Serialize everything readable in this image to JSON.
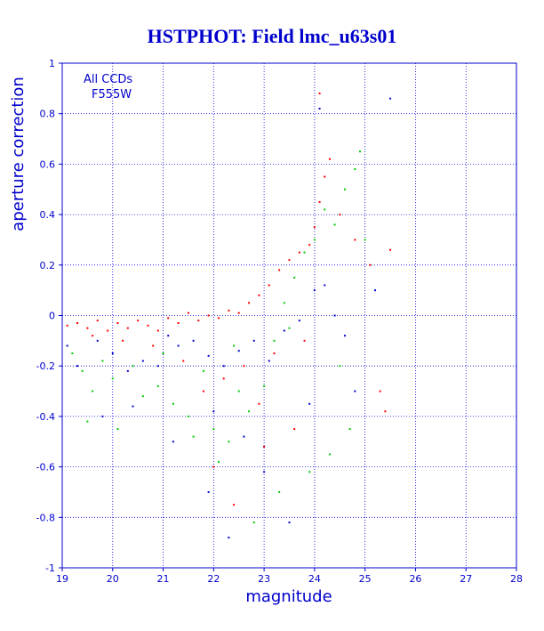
{
  "chart_data": {
    "type": "scatter",
    "title": "HSTPHOT: Field lmc_u63s01",
    "xlabel": "magnitude",
    "ylabel": "aperture correction",
    "xlim": [
      19,
      28
    ],
    "ylim": [
      -1,
      1
    ],
    "x_ticks": [
      "19",
      "20",
      "21",
      "22",
      "23",
      "24",
      "25",
      "26",
      "27",
      "28"
    ],
    "y_ticks": [
      "1",
      "0.8",
      "0.6",
      "0.4",
      "0.2",
      "0",
      "-0.2",
      "-0.4",
      "-0.6",
      "-0.8",
      "-1"
    ],
    "annotations": [
      "All CCDs",
      "F555W"
    ],
    "grid": true,
    "series": [
      {
        "color": "#ff0000",
        "points": [
          [
            19.1,
            -0.04
          ],
          [
            19.3,
            -0.03
          ],
          [
            19.5,
            -0.05
          ],
          [
            19.7,
            -0.02
          ],
          [
            19.9,
            -0.06
          ],
          [
            20.1,
            -0.03
          ],
          [
            20.3,
            -0.05
          ],
          [
            20.5,
            -0.02
          ],
          [
            20.7,
            -0.04
          ],
          [
            20.9,
            -0.06
          ],
          [
            21.1,
            -0.01
          ],
          [
            21.3,
            -0.03
          ],
          [
            21.5,
            0.01
          ],
          [
            21.7,
            -0.02
          ],
          [
            21.9,
            0.0
          ],
          [
            22.1,
            -0.01
          ],
          [
            22.3,
            0.02
          ],
          [
            22.5,
            0.01
          ],
          [
            22.7,
            0.05
          ],
          [
            22.9,
            0.08
          ],
          [
            23.1,
            0.12
          ],
          [
            23.3,
            0.18
          ],
          [
            23.5,
            0.22
          ],
          [
            23.7,
            0.25
          ],
          [
            23.9,
            0.28
          ],
          [
            24.0,
            0.35
          ],
          [
            24.1,
            0.45
          ],
          [
            24.2,
            0.55
          ],
          [
            24.1,
            0.88
          ],
          [
            24.3,
            0.62
          ],
          [
            24.5,
            0.4
          ],
          [
            24.8,
            0.3
          ],
          [
            25.1,
            0.2
          ],
          [
            25.3,
            -0.3
          ],
          [
            25.4,
            -0.38
          ],
          [
            25.5,
            0.26
          ],
          [
            22.0,
            -0.6
          ],
          [
            22.4,
            -0.75
          ],
          [
            23.0,
            -0.52
          ],
          [
            23.6,
            -0.45
          ],
          [
            21.8,
            -0.3
          ],
          [
            22.2,
            -0.25
          ],
          [
            22.6,
            -0.2
          ],
          [
            23.2,
            -0.15
          ],
          [
            23.8,
            -0.1
          ],
          [
            21.4,
            -0.18
          ],
          [
            20.8,
            -0.12
          ],
          [
            20.2,
            -0.1
          ],
          [
            19.6,
            -0.08
          ],
          [
            22.9,
            -0.35
          ]
        ]
      },
      {
        "color": "#00cc00",
        "points": [
          [
            19.2,
            -0.15
          ],
          [
            19.4,
            -0.22
          ],
          [
            19.6,
            -0.3
          ],
          [
            19.8,
            -0.18
          ],
          [
            20.0,
            -0.25
          ],
          [
            20.4,
            -0.2
          ],
          [
            20.6,
            -0.32
          ],
          [
            20.9,
            -0.28
          ],
          [
            21.2,
            -0.35
          ],
          [
            21.5,
            -0.4
          ],
          [
            21.8,
            -0.22
          ],
          [
            22.0,
            -0.45
          ],
          [
            22.3,
            -0.5
          ],
          [
            22.5,
            -0.3
          ],
          [
            22.7,
            -0.38
          ],
          [
            23.0,
            -0.28
          ],
          [
            23.2,
            -0.1
          ],
          [
            23.4,
            0.05
          ],
          [
            23.6,
            0.15
          ],
          [
            23.8,
            0.25
          ],
          [
            24.0,
            0.3
          ],
          [
            24.2,
            0.42
          ],
          [
            24.4,
            0.36
          ],
          [
            24.6,
            0.5
          ],
          [
            24.8,
            0.58
          ],
          [
            24.9,
            0.65
          ],
          [
            25.0,
            0.3
          ],
          [
            24.5,
            -0.2
          ],
          [
            24.7,
            -0.45
          ],
          [
            24.3,
            -0.55
          ],
          [
            23.9,
            -0.62
          ],
          [
            23.3,
            -0.7
          ],
          [
            22.8,
            -0.82
          ],
          [
            22.1,
            -0.58
          ],
          [
            21.6,
            -0.48
          ],
          [
            20.1,
            -0.45
          ],
          [
            19.5,
            -0.42
          ],
          [
            21.0,
            -0.15
          ],
          [
            22.4,
            -0.12
          ],
          [
            23.5,
            -0.05
          ]
        ]
      },
      {
        "color": "#0000cc",
        "points": [
          [
            19.1,
            -0.12
          ],
          [
            19.3,
            -0.2
          ],
          [
            19.7,
            -0.1
          ],
          [
            20.0,
            -0.15
          ],
          [
            20.3,
            -0.22
          ],
          [
            20.6,
            -0.18
          ],
          [
            20.9,
            -0.2
          ],
          [
            21.1,
            -0.08
          ],
          [
            21.3,
            -0.12
          ],
          [
            21.6,
            -0.1
          ],
          [
            21.9,
            -0.16
          ],
          [
            22.2,
            -0.2
          ],
          [
            22.5,
            -0.14
          ],
          [
            22.8,
            -0.1
          ],
          [
            23.1,
            -0.18
          ],
          [
            23.4,
            -0.06
          ],
          [
            23.7,
            -0.02
          ],
          [
            24.0,
            0.1
          ],
          [
            24.2,
            0.12
          ],
          [
            24.4,
            0.0
          ],
          [
            24.6,
            -0.08
          ],
          [
            25.2,
            0.1
          ],
          [
            25.5,
            0.86
          ],
          [
            24.1,
            0.82
          ],
          [
            22.0,
            -0.38
          ],
          [
            22.6,
            -0.48
          ],
          [
            23.0,
            -0.62
          ],
          [
            23.5,
            -0.82
          ],
          [
            22.3,
            -0.88
          ],
          [
            21.9,
            -0.7
          ],
          [
            21.2,
            -0.5
          ],
          [
            20.4,
            -0.36
          ],
          [
            19.8,
            -0.4
          ],
          [
            24.8,
            -0.3
          ],
          [
            23.9,
            -0.35
          ]
        ]
      }
    ]
  }
}
